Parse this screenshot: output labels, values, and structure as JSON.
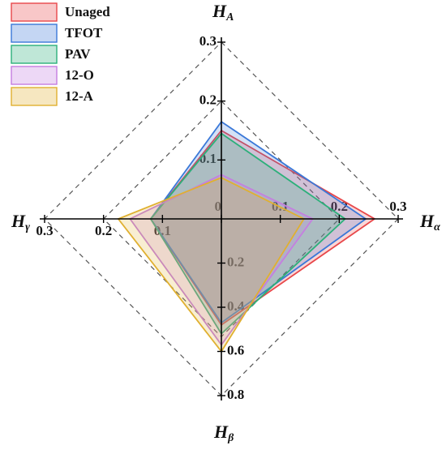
{
  "chart_data": {
    "type": "radar",
    "axes": [
      {
        "name": {
          "main": "H",
          "sub": "A"
        },
        "lim": [
          0,
          0.3
        ],
        "ticks": [
          0.1,
          0.2,
          0.3
        ]
      },
      {
        "name": {
          "main": "H",
          "sub": "α"
        },
        "lim": [
          0,
          0.3
        ],
        "ticks": [
          0,
          0.1,
          0.2,
          0.3
        ]
      },
      {
        "name": {
          "main": "H",
          "sub": "β"
        },
        "lim": [
          0,
          0.8
        ],
        "ticks": [
          0.2,
          0.4,
          0.6,
          0.8
        ]
      },
      {
        "name": {
          "main": "H",
          "sub": "γ"
        },
        "lim": [
          0,
          0.3
        ],
        "ticks": [
          0.1,
          0.2,
          0.3
        ]
      }
    ],
    "series": [
      {
        "name": "Unaged",
        "color": "#e8474a",
        "values": [
          0.15,
          0.26,
          0.48,
          0.12
        ]
      },
      {
        "name": "TFOT",
        "color": "#3a78d8",
        "values": [
          0.165,
          0.245,
          0.47,
          0.12
        ]
      },
      {
        "name": "PAV",
        "color": "#2cb07a",
        "values": [
          0.145,
          0.21,
          0.52,
          0.12
        ]
      },
      {
        "name": "12-O",
        "color": "#c57ee0",
        "values": [
          0.075,
          0.155,
          0.57,
          0.155
        ]
      },
      {
        "name": "12-A",
        "color": "#e0b030",
        "values": [
          0.07,
          0.14,
          0.6,
          0.175
        ]
      }
    ],
    "grid": true,
    "legend": "top-left"
  }
}
